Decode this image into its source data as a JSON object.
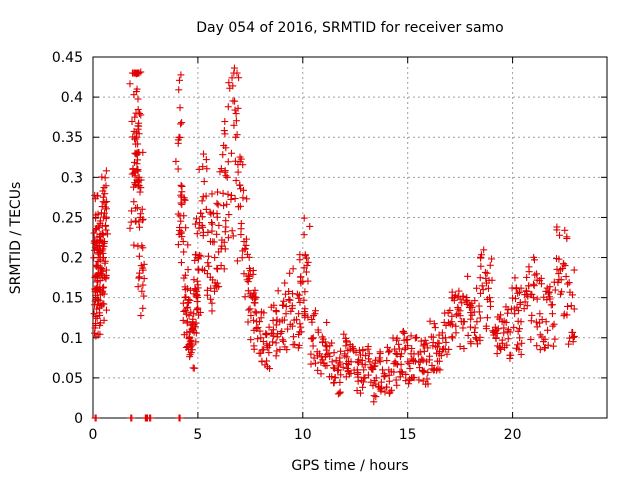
{
  "chart_data": {
    "type": "scatter",
    "title": "Day 054 of 2016, SRMTID for receiver samo",
    "xlabel": "GPS time / hours",
    "ylabel": "SRMTID / TECUs",
    "xlim": [
      0,
      24.5
    ],
    "ylim": [
      0,
      0.45
    ],
    "xticks": [
      0,
      5,
      10,
      15,
      20
    ],
    "xtick_labels": [
      "0",
      "5",
      "10",
      "15",
      "20"
    ],
    "yticks": [
      0,
      0.05,
      0.1,
      0.15,
      0.2,
      0.25,
      0.3,
      0.35,
      0.4,
      0.45
    ],
    "ytick_labels": [
      "0",
      "0.05",
      "0.1",
      "0.15",
      "0.2",
      "0.25",
      "0.3",
      "0.35",
      "0.4",
      "0.45"
    ],
    "grid": true,
    "marker": "+",
    "color": "#e00000",
    "series": [
      {
        "name": "SRMTID",
        "x": [
          0.05,
          0.1,
          0.15,
          0.2,
          0.25,
          0.3,
          0.35,
          0.4,
          0.45,
          0.5,
          0.55,
          0.6,
          1.9,
          2.0,
          2.05,
          2.1,
          2.15,
          2.2,
          2.25,
          2.3,
          2.5,
          2.6,
          4.1,
          4.2,
          4.3,
          4.4,
          4.5,
          4.6,
          4.7,
          4.8,
          4.9,
          5.0,
          5.2,
          5.4,
          5.6,
          5.8,
          6.0,
          6.2,
          6.4,
          6.6,
          6.8,
          7.0,
          7.2,
          7.4,
          7.6,
          7.8,
          8.0,
          8.3,
          8.6,
          8.9,
          9.2,
          9.5,
          9.8,
          10.0,
          10.2,
          10.5,
          10.8,
          11.1,
          11.4,
          11.7,
          12.0,
          12.3,
          12.6,
          12.9,
          13.2,
          13.5,
          13.8,
          14.1,
          14.4,
          14.7,
          15.0,
          15.3,
          15.6,
          15.9,
          16.2,
          16.5,
          16.8,
          17.1,
          17.4,
          17.7,
          18.0,
          18.3,
          18.6,
          18.9,
          19.2,
          19.5,
          19.8,
          20.1,
          20.4,
          20.7,
          21.0,
          21.3,
          21.6,
          21.9,
          22.2,
          22.5,
          22.8
        ],
        "y": [
          0.13,
          0.22,
          0.19,
          0.21,
          0.18,
          0.16,
          0.2,
          0.14,
          0.23,
          0.2,
          0.22,
          0.24,
          0.31,
          0.33,
          0.38,
          0.41,
          0.36,
          0.3,
          0.25,
          0.19,
          0.0,
          0.0,
          0.35,
          0.29,
          0.22,
          0.16,
          0.12,
          0.1,
          0.09,
          0.13,
          0.16,
          0.2,
          0.24,
          0.26,
          0.22,
          0.2,
          0.24,
          0.28,
          0.3,
          0.33,
          0.35,
          0.29,
          0.22,
          0.17,
          0.15,
          0.12,
          0.1,
          0.09,
          0.11,
          0.12,
          0.13,
          0.14,
          0.13,
          0.17,
          0.19,
          0.1,
          0.08,
          0.09,
          0.07,
          0.06,
          0.08,
          0.07,
          0.06,
          0.06,
          0.07,
          0.05,
          0.06,
          0.06,
          0.07,
          0.08,
          0.07,
          0.08,
          0.07,
          0.07,
          0.09,
          0.08,
          0.1,
          0.12,
          0.13,
          0.12,
          0.14,
          0.12,
          0.16,
          0.15,
          0.1,
          0.12,
          0.11,
          0.13,
          0.12,
          0.14,
          0.15,
          0.13,
          0.12,
          0.13,
          0.18,
          0.19,
          0.14
        ]
      }
    ],
    "zero_markers": [
      0.1,
      1.8,
      2.5,
      2.7,
      4.1
    ]
  }
}
